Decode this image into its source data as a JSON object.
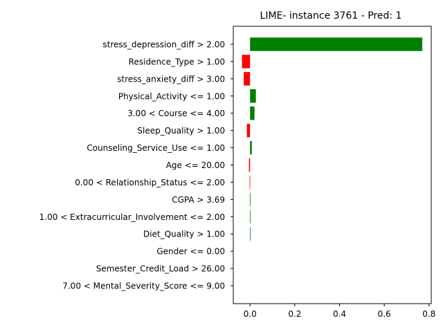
{
  "chart_data": {
    "type": "bar",
    "orientation": "horizontal",
    "title": "LIME- instance 3761 - Pred: 1",
    "xlabel": "",
    "ylabel": "",
    "xlim": [
      -0.075,
      0.81
    ],
    "xticks": [
      0.0,
      0.2,
      0.4,
      0.6,
      0.8
    ],
    "xtick_labels": [
      "0.0",
      "0.2",
      "0.4",
      "0.6",
      "0.8"
    ],
    "colors": {
      "positive": "#008000",
      "negative": "#ff0000"
    },
    "grid": false,
    "categories": [
      "stress_depression_diff > 2.00",
      "Residence_Type > 1.00",
      "stress_anxiety_diff > 3.00",
      "Physical_Activity <= 1.00",
      "3.00 < Course <= 4.00",
      "Sleep_Quality > 1.00",
      "Counseling_Service_Use <= 1.00",
      "Age <= 20.00",
      "0.00 < Relationship_Status <= 2.00",
      "CGPA > 3.69",
      "1.00 < Extracurricular_Involvement <= 2.00",
      "Diet_Quality > 1.00",
      "Gender <= 0.00",
      "Semester_Credit_Load > 26.00",
      "7.00 < Mental_Severity_Score <= 9.00"
    ],
    "values": [
      0.77,
      -0.036,
      -0.028,
      0.026,
      0.02,
      -0.014,
      0.008,
      -0.005,
      -0.002,
      0.002,
      0.002,
      0.002,
      0.0,
      0.0,
      0.0
    ]
  }
}
